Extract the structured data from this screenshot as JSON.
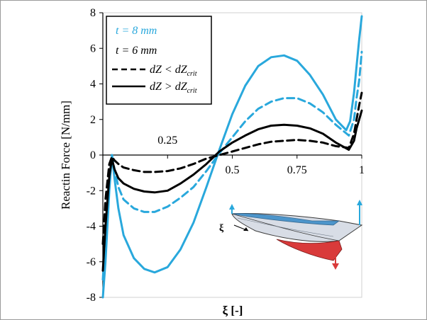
{
  "chart_data": {
    "type": "line",
    "xlabel": "ξ [-]",
    "ylabel": "Reactin Force [N/mm]",
    "xlim": [
      0,
      1
    ],
    "ylim": [
      -8,
      8
    ],
    "x_ticks": [
      "0.25",
      "0.5",
      "0.75",
      "1"
    ],
    "x_tick_values": [
      0.25,
      0.5,
      0.75,
      1
    ],
    "y_ticks": [
      "-8",
      "-6",
      "-4",
      "-2",
      "0",
      "2",
      "4",
      "6",
      "8"
    ],
    "y_tick_values": [
      -8,
      -6,
      -4,
      -2,
      0,
      2,
      4,
      6,
      8
    ],
    "grid": false,
    "legend_position": "top-left",
    "legend": {
      "t8": "t = 8 mm",
      "t6": "t = 6 mm",
      "dashed": "dZ < dZ",
      "dashed_sub": "crit",
      "solid": "dZ > dZ",
      "solid_sub": "crit"
    },
    "colors": {
      "t8": "#29a8dc",
      "t6": "#000000"
    },
    "series": [
      {
        "thickness": "t8",
        "style": "solid",
        "x": [
          0.0,
          0.01,
          0.025,
          0.035,
          0.045,
          0.06,
          0.08,
          0.12,
          0.16,
          0.2,
          0.25,
          0.3,
          0.35,
          0.4,
          0.45,
          0.5,
          0.55,
          0.6,
          0.65,
          0.7,
          0.75,
          0.8,
          0.85,
          0.9,
          0.94,
          0.955,
          0.97,
          0.98,
          0.99,
          1.0
        ],
        "y": [
          -8.0,
          -6.0,
          -2.0,
          0.0,
          -1.3,
          -3.0,
          -4.5,
          -5.8,
          -6.4,
          -6.6,
          -6.3,
          -5.3,
          -3.8,
          -1.8,
          0.3,
          2.3,
          3.9,
          5.0,
          5.5,
          5.6,
          5.3,
          4.5,
          3.4,
          2.0,
          1.4,
          1.9,
          3.5,
          5.0,
          6.5,
          7.8
        ]
      },
      {
        "thickness": "t8",
        "style": "dashed",
        "x": [
          0.0,
          0.01,
          0.025,
          0.035,
          0.045,
          0.06,
          0.08,
          0.12,
          0.16,
          0.2,
          0.25,
          0.3,
          0.35,
          0.4,
          0.45,
          0.5,
          0.55,
          0.6,
          0.65,
          0.7,
          0.75,
          0.8,
          0.85,
          0.9,
          0.95,
          0.97,
          0.98,
          0.99,
          1.0
        ],
        "y": [
          -7.0,
          -4.5,
          -1.5,
          0.0,
          -0.8,
          -1.8,
          -2.5,
          -3.0,
          -3.2,
          -3.2,
          -2.9,
          -2.4,
          -1.8,
          -0.9,
          0.1,
          1.0,
          1.9,
          2.6,
          3.0,
          3.2,
          3.2,
          2.9,
          2.4,
          1.7,
          1.1,
          2.0,
          3.2,
          4.2,
          5.8
        ]
      },
      {
        "thickness": "t6",
        "style": "solid",
        "x": [
          0.0,
          0.01,
          0.025,
          0.035,
          0.045,
          0.06,
          0.08,
          0.12,
          0.16,
          0.2,
          0.25,
          0.3,
          0.35,
          0.4,
          0.45,
          0.5,
          0.55,
          0.6,
          0.65,
          0.7,
          0.75,
          0.8,
          0.85,
          0.9,
          0.95,
          0.97,
          0.98,
          0.99,
          1.0
        ],
        "y": [
          -6.5,
          -4.0,
          -1.2,
          -0.2,
          -0.8,
          -1.3,
          -1.6,
          -1.9,
          -2.05,
          -2.1,
          -2.0,
          -1.6,
          -1.1,
          -0.5,
          0.2,
          0.7,
          1.1,
          1.45,
          1.65,
          1.7,
          1.65,
          1.5,
          1.2,
          0.7,
          0.3,
          0.8,
          1.5,
          2.0,
          2.5
        ]
      },
      {
        "thickness": "t6",
        "style": "dashed",
        "x": [
          0.0,
          0.01,
          0.025,
          0.035,
          0.045,
          0.06,
          0.08,
          0.12,
          0.16,
          0.2,
          0.25,
          0.3,
          0.35,
          0.4,
          0.45,
          0.5,
          0.55,
          0.6,
          0.65,
          0.7,
          0.75,
          0.8,
          0.85,
          0.9,
          0.95,
          0.97,
          0.98,
          0.99,
          1.0
        ],
        "y": [
          -5.0,
          -2.5,
          -0.5,
          -0.1,
          -0.3,
          -0.5,
          -0.7,
          -0.85,
          -0.95,
          -0.95,
          -0.9,
          -0.75,
          -0.5,
          -0.2,
          0.0,
          0.2,
          0.4,
          0.6,
          0.75,
          0.8,
          0.85,
          0.8,
          0.7,
          0.5,
          0.4,
          1.2,
          2.0,
          2.8,
          3.5
        ]
      }
    ]
  }
}
